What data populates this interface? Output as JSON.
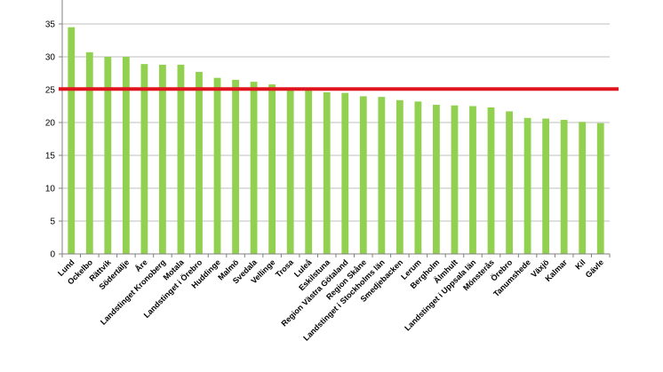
{
  "chart_data": {
    "type": "bar",
    "categories": [
      "Lund",
      "Ockelbo",
      "Rättvik",
      "Södertälje",
      "Åre",
      "Landstinget Kronoberg",
      "Motala",
      "Landstinget i Örebro",
      "Huddinge",
      "Malmö",
      "Svedala",
      "Vellinge",
      "Trosa",
      "Luleå",
      "Eskilstuna",
      "Region Västra Götaland",
      "Region Skåne",
      "Landstinget i Stockholms län",
      "Smedjebacken",
      "Lerum",
      "Bergholm",
      "Älmhult",
      "Landstinget i Uppsala län",
      "Mönsterås",
      "Örebro",
      "Tanumshede",
      "Växjö",
      "Kalmar",
      "Kil",
      "Gävle"
    ],
    "values": [
      34.5,
      30.7,
      30.0,
      30.0,
      28.9,
      28.8,
      28.8,
      27.7,
      26.8,
      26.5,
      26.2,
      25.8,
      25.1,
      24.9,
      24.6,
      24.5,
      24.0,
      23.9,
      23.4,
      23.2,
      22.7,
      22.6,
      22.5,
      22.3,
      21.7,
      20.7,
      20.6,
      20.4,
      20.1,
      19.9
    ],
    "yticks": [
      0,
      5,
      10,
      15,
      20,
      25,
      30,
      35
    ],
    "ylim": [
      0,
      35
    ],
    "reference_line": 25.1,
    "grid": true,
    "colors": {
      "bar": "#92d050",
      "reference_line": "#e0141e",
      "grid": "#bfbfbf",
      "axis": "#808080"
    }
  }
}
